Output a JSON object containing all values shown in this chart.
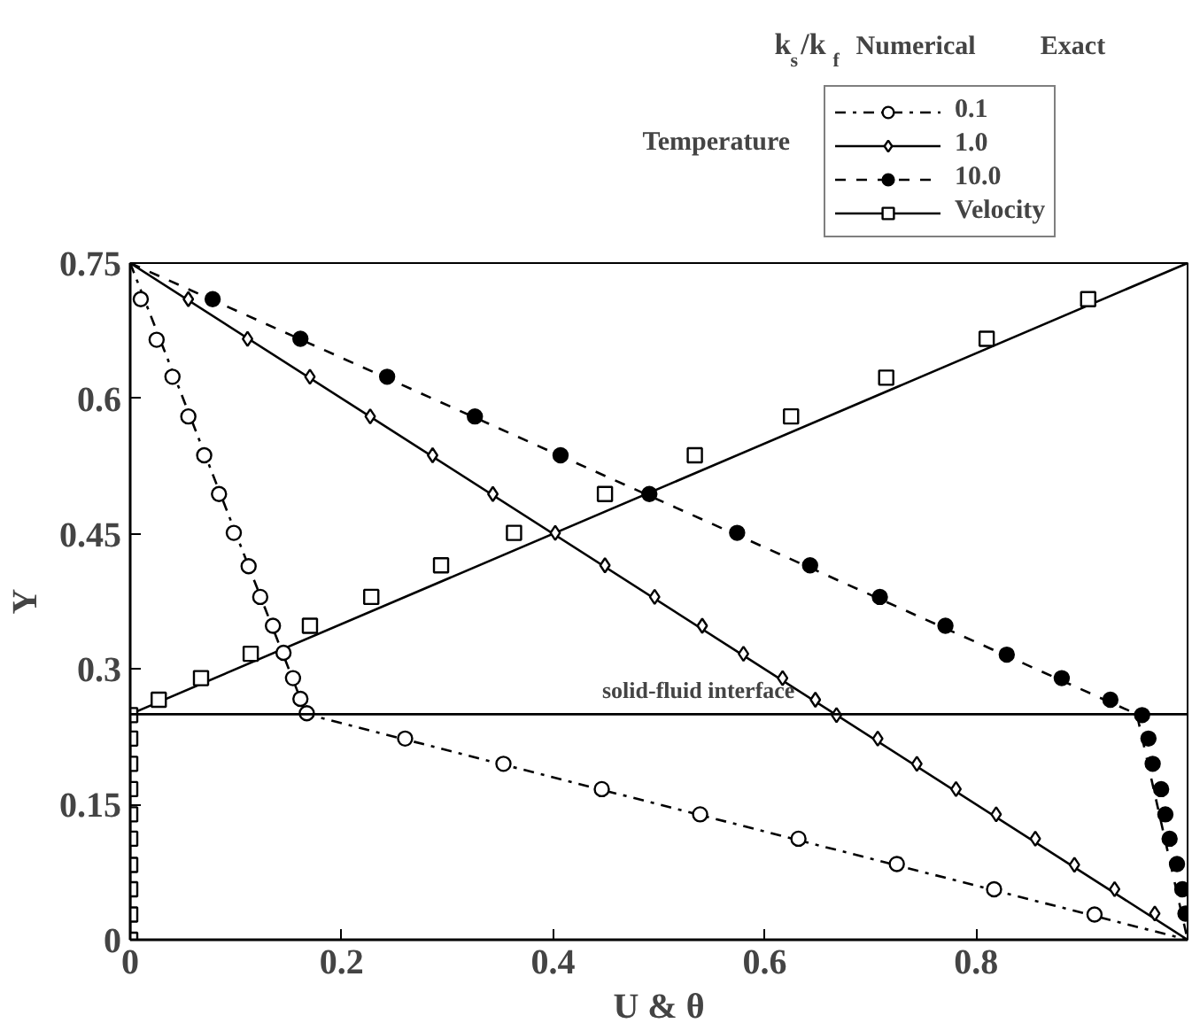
{
  "chart_data": {
    "type": "line",
    "xlabel": "U & θ",
    "ylabel": "Y",
    "xlim": [
      0,
      1
    ],
    "ylim": [
      0,
      0.75
    ],
    "xticks": [
      0,
      0.2,
      0.4,
      0.6,
      0.8,
      {
        "value": 1,
        "label": null
      }
    ],
    "yticks": [
      0,
      0.15,
      0.3,
      0.45,
      0.6,
      0.75
    ],
    "grid": false,
    "legend": "top right",
    "legend_title": "k$_{s}$/k$_{f}$",
    "annotations": [
      "Numerical",
      "Exact",
      "Temperature"
    ],
    "ref_lines": [
      {
        "axis": "y",
        "value": 0.25,
        "label": "solid-fluid interface",
        "color": "#000000",
        "line_style": "solid"
      }
    ],
    "series": [
      {
        "name": "0.1",
        "color": "#000000",
        "line_style": "dashdot",
        "x": [
          0,
          0.1667,
          1
        ],
        "values": [
          0.75,
          0.25,
          0
        ]
      },
      {
        "name": "1.0",
        "color": "#000000",
        "line_style": "solid",
        "x": [
          0,
          1
        ],
        "values": [
          0.75,
          0
        ]
      },
      {
        "name": "10.0",
        "color": "#000000",
        "line_style": "dashed",
        "x": [
          0,
          0.952,
          1
        ],
        "values": [
          0.75,
          0.25,
          0
        ]
      },
      {
        "name": "Velocity",
        "color": "#000000",
        "line_style": "solid",
        "x": [
          0,
          0,
          1
        ],
        "values": [
          0,
          0.25,
          0.75
        ]
      },
      {
        "type": "scatter",
        "color": "#ffffff",
        "marker": "circle",
        "x": [
          0.01,
          0.025,
          0.04,
          0.055,
          0.07,
          0.084,
          0.098,
          0.112,
          0.123,
          0.135,
          0.145,
          0.154,
          0.161,
          0.167,
          0.26,
          0.353,
          0.446,
          0.539,
          0.632,
          0.725,
          0.817,
          0.912
        ],
        "values": [
          0.71,
          0.665,
          0.624,
          0.58,
          0.537,
          0.494,
          0.451,
          0.414,
          0.38,
          0.348,
          0.318,
          0.29,
          0.267,
          0.251,
          0.223,
          0.195,
          0.167,
          0.139,
          0.112,
          0.084,
          0.056,
          0.028
        ]
      },
      {
        "type": "scatter",
        "color": "#ffffff",
        "marker": "diamond",
        "x": [
          0.055,
          0.111,
          0.17,
          0.227,
          0.286,
          0.343,
          0.402,
          0.449,
          0.496,
          0.541,
          0.58,
          0.617,
          0.648,
          0.668,
          0.707,
          0.744,
          0.781,
          0.819,
          0.856,
          0.893,
          0.931,
          0.969
        ],
        "values": [
          0.71,
          0.666,
          0.624,
          0.58,
          0.537,
          0.494,
          0.451,
          0.415,
          0.38,
          0.348,
          0.317,
          0.29,
          0.266,
          0.249,
          0.223,
          0.195,
          0.167,
          0.139,
          0.112,
          0.083,
          0.056,
          0.029
        ]
      },
      {
        "type": "scatter",
        "color": "#000000",
        "marker": "circle",
        "x": [
          0.078,
          0.161,
          0.243,
          0.326,
          0.407,
          0.491,
          0.574,
          0.643,
          0.709,
          0.771,
          0.829,
          0.881,
          0.927,
          0.957,
          0.963,
          0.967,
          0.975,
          0.979,
          0.983,
          0.99,
          0.995,
          0.998
        ],
        "values": [
          0.71,
          0.666,
          0.624,
          0.58,
          0.537,
          0.494,
          0.451,
          0.415,
          0.38,
          0.348,
          0.316,
          0.29,
          0.266,
          0.249,
          0.223,
          0.195,
          0.167,
          0.139,
          0.112,
          0.084,
          0.056,
          0.029
        ]
      },
      {
        "type": "scatter",
        "color": "#ffffff",
        "marker": "square",
        "x": [
          0,
          0,
          0,
          0,
          0,
          0,
          0,
          0,
          0,
          0,
          0.027,
          0.067,
          0.114,
          0.17,
          0.228,
          0.294,
          0.363,
          0.449,
          0.534,
          0.625,
          0.715,
          0.81,
          0.906
        ],
        "values": [
          0,
          0.028,
          0.056,
          0.083,
          0.112,
          0.139,
          0.167,
          0.195,
          0.223,
          0.249,
          0.266,
          0.29,
          0.317,
          0.348,
          0.38,
          0.415,
          0.451,
          0.494,
          0.537,
          0.58,
          0.623,
          0.666,
          0.71
        ]
      }
    ]
  }
}
